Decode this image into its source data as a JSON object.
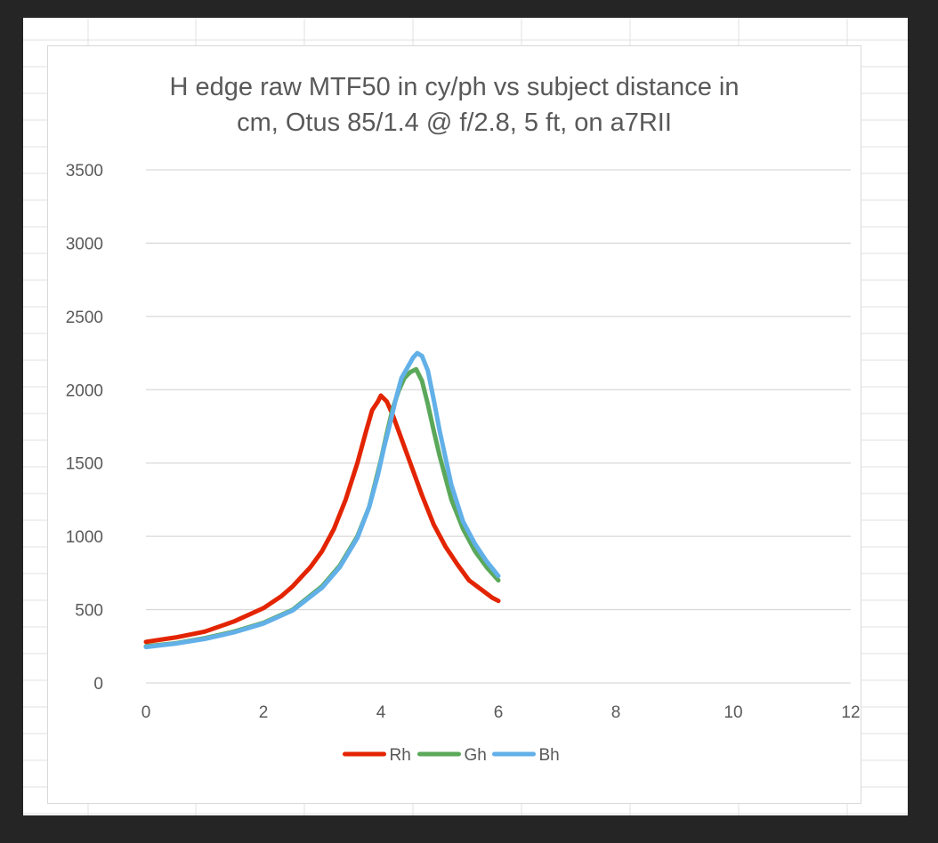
{
  "colors": {
    "window_bg": "#252526",
    "sheet_bg": "#ffffff",
    "cell_grid": "#e1e1e1",
    "chart_border": "#d9d9d9",
    "gridline": "#d9d9d9",
    "text": "#595959"
  },
  "chart_data": {
    "type": "line",
    "title_lines": [
      "H edge raw MTF50 in cy/ph vs subject distance in",
      "cm, Otus 85/1.4 @ f/2.8, 5 ft, on a7RII"
    ],
    "title": "H edge raw MTF50 in cy/ph vs subject distance in cm, Otus 85/1.4 @ f/2.8, 5 ft, on a7RII",
    "xlabel": "",
    "ylabel": "",
    "xlim": [
      0,
      12
    ],
    "ylim": [
      0,
      3500
    ],
    "x_ticks": [
      0,
      2,
      4,
      6,
      8,
      10,
      12
    ],
    "y_ticks": [
      0,
      500,
      1000,
      1500,
      2000,
      2500,
      3000,
      3500
    ],
    "grid": "horizontal",
    "legend_position": "bottom",
    "series": [
      {
        "name": "Rh",
        "color": "#e32400",
        "points": [
          [
            0,
            280
          ],
          [
            0.5,
            310
          ],
          [
            1,
            350
          ],
          [
            1.5,
            420
          ],
          [
            2,
            510
          ],
          [
            2.3,
            590
          ],
          [
            2.5,
            660
          ],
          [
            2.8,
            790
          ],
          [
            3,
            900
          ],
          [
            3.2,
            1050
          ],
          [
            3.4,
            1250
          ],
          [
            3.6,
            1500
          ],
          [
            3.75,
            1720
          ],
          [
            3.85,
            1860
          ],
          [
            3.95,
            1920
          ],
          [
            4.0,
            1960
          ],
          [
            4.1,
            1920
          ],
          [
            4.2,
            1830
          ],
          [
            4.3,
            1720
          ],
          [
            4.5,
            1500
          ],
          [
            4.7,
            1280
          ],
          [
            4.9,
            1080
          ],
          [
            5.1,
            930
          ],
          [
            5.3,
            810
          ],
          [
            5.5,
            700
          ],
          [
            5.7,
            640
          ],
          [
            5.9,
            580
          ],
          [
            6.0,
            560
          ]
        ]
      },
      {
        "name": "Gh",
        "color": "#5ba85a",
        "points": [
          [
            0,
            250
          ],
          [
            0.5,
            270
          ],
          [
            1,
            305
          ],
          [
            1.5,
            350
          ],
          [
            2,
            410
          ],
          [
            2.5,
            500
          ],
          [
            3,
            660
          ],
          [
            3.3,
            800
          ],
          [
            3.6,
            1000
          ],
          [
            3.8,
            1200
          ],
          [
            4.0,
            1520
          ],
          [
            4.1,
            1700
          ],
          [
            4.2,
            1870
          ],
          [
            4.3,
            1990
          ],
          [
            4.4,
            2080
          ],
          [
            4.5,
            2120
          ],
          [
            4.6,
            2140
          ],
          [
            4.7,
            2060
          ],
          [
            4.8,
            1900
          ],
          [
            4.9,
            1720
          ],
          [
            5.0,
            1550
          ],
          [
            5.2,
            1250
          ],
          [
            5.4,
            1050
          ],
          [
            5.6,
            900
          ],
          [
            5.8,
            790
          ],
          [
            6.0,
            700
          ]
        ]
      },
      {
        "name": "Bh",
        "color": "#62b0e8",
        "points": [
          [
            0,
            245
          ],
          [
            0.5,
            268
          ],
          [
            1,
            300
          ],
          [
            1.5,
            345
          ],
          [
            2,
            405
          ],
          [
            2.5,
            495
          ],
          [
            3,
            650
          ],
          [
            3.3,
            790
          ],
          [
            3.6,
            990
          ],
          [
            3.8,
            1200
          ],
          [
            3.95,
            1420
          ],
          [
            4.05,
            1600
          ],
          [
            4.15,
            1760
          ],
          [
            4.25,
            1930
          ],
          [
            4.35,
            2080
          ],
          [
            4.45,
            2150
          ],
          [
            4.55,
            2220
          ],
          [
            4.62,
            2250
          ],
          [
            4.7,
            2230
          ],
          [
            4.8,
            2130
          ],
          [
            4.9,
            1930
          ],
          [
            5.0,
            1720
          ],
          [
            5.2,
            1350
          ],
          [
            5.4,
            1100
          ],
          [
            5.6,
            950
          ],
          [
            5.8,
            830
          ],
          [
            6.0,
            730
          ]
        ]
      }
    ]
  }
}
